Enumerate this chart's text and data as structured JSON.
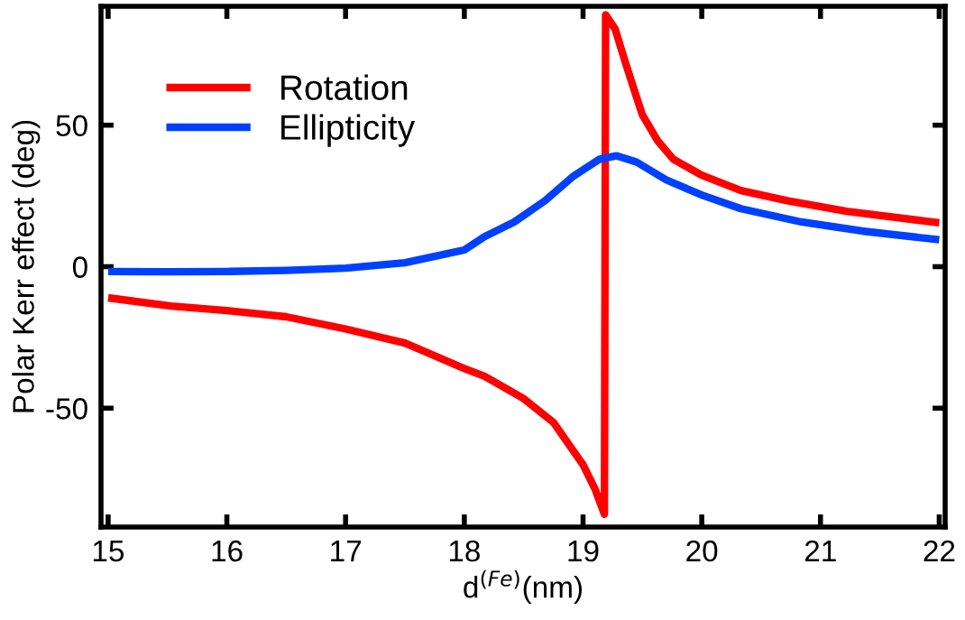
{
  "chart_data": {
    "type": "line",
    "xlabel": "d$^{(Fe)}$(nm)",
    "ylabel": "Polar Kerr effect (deg)",
    "xlim": [
      14.94,
      22.05
    ],
    "ylim": [
      -92,
      92
    ],
    "xticks": [
      15,
      16,
      17,
      18,
      19,
      20,
      21,
      22
    ],
    "yticks": [
      -50,
      0,
      50
    ],
    "legend": "top left",
    "grid": false,
    "line_style": "solid",
    "marker": "none",
    "series": [
      {
        "name": "Rotation",
        "color": "#ff0000",
        "x": [
          15.0,
          15.53,
          16.0,
          16.5,
          17.0,
          17.5,
          18.0,
          18.17,
          18.5,
          18.75,
          19.0,
          19.1,
          19.18,
          19.19,
          19.27,
          19.35,
          19.43,
          19.5,
          19.63,
          19.76,
          20.0,
          20.33,
          20.72,
          21.22,
          22.0
        ],
        "values": [
          -11,
          -13.9,
          -15.5,
          -17.7,
          -22,
          -27,
          -36,
          -38.7,
          -46.6,
          -55,
          -70,
          -78.5,
          -87.5,
          89,
          84,
          73,
          62.6,
          53.6,
          44.4,
          38,
          32.3,
          26.9,
          23.3,
          19.6,
          15.5
        ]
      },
      {
        "name": "Ellipticity",
        "color": "#0040ff",
        "x": [
          15.0,
          15.5,
          16.0,
          16.5,
          17.0,
          17.5,
          18.0,
          18.17,
          18.42,
          18.68,
          18.91,
          19.14,
          19.28,
          19.45,
          19.7,
          20.0,
          20.33,
          20.84,
          21.35,
          22.0
        ],
        "values": [
          -1.7,
          -1.8,
          -1.7,
          -1.3,
          -0.5,
          1.4,
          5.9,
          10.6,
          15.8,
          23.3,
          31.7,
          38,
          39.2,
          37,
          30.7,
          25.3,
          20.5,
          15.8,
          12.6,
          9.5
        ]
      }
    ]
  }
}
